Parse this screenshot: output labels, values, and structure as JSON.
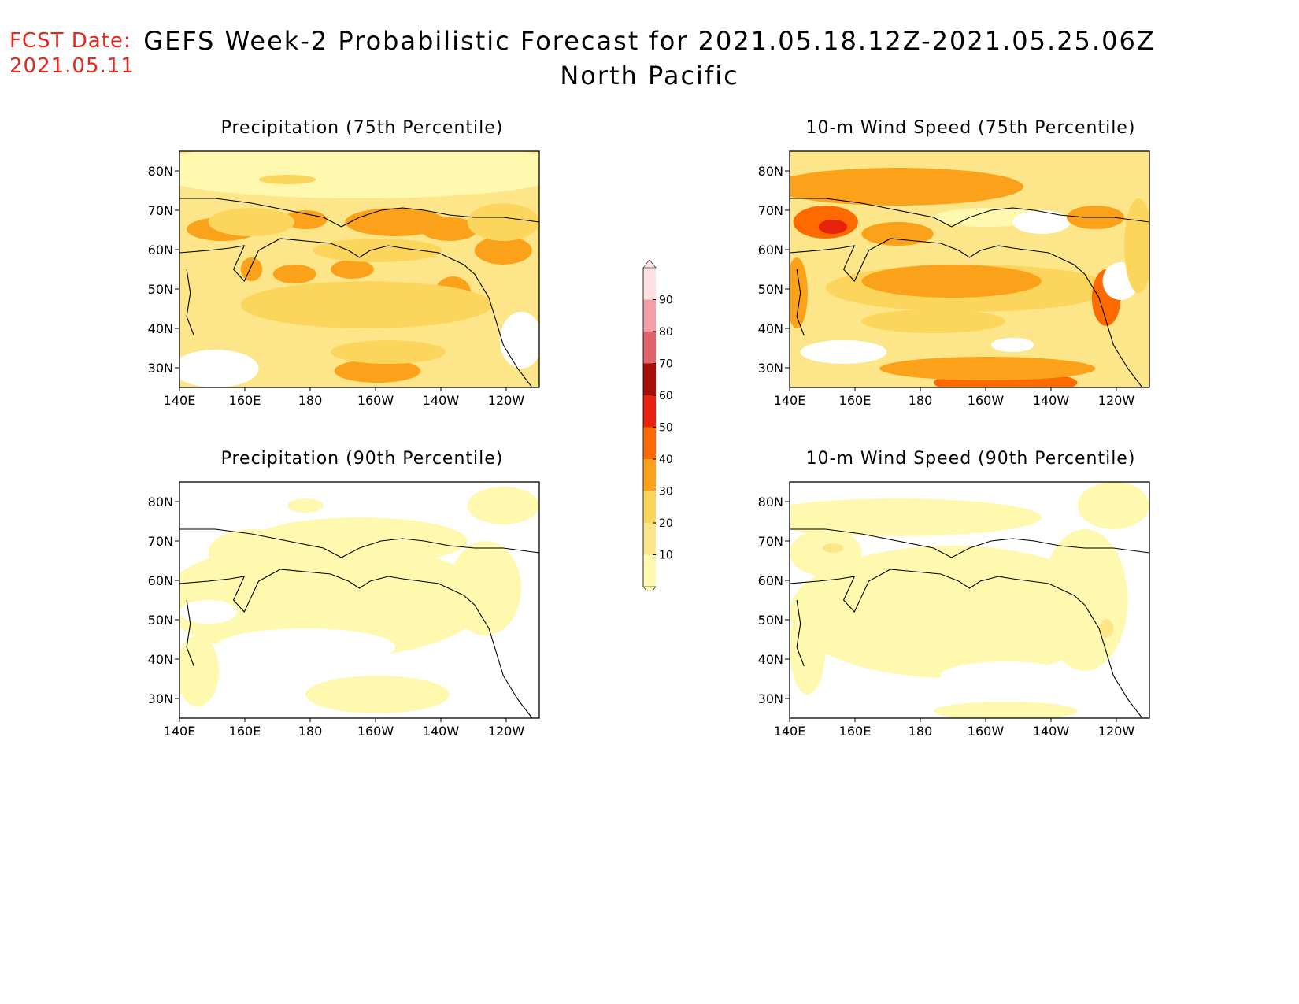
{
  "header": {
    "fcst_label": "FCST Date:",
    "fcst_date": "2021.05.11",
    "title_line1": "GEFS Week-2 Probabilistic Forecast for 2021.05.18.12Z-2021.05.25.06Z",
    "title_line2": "North Pacific"
  },
  "panels": [
    {
      "id": "precip75",
      "title": "Precipitation (75th Percentile)"
    },
    {
      "id": "wind75",
      "title": "10-m Wind Speed (75th Percentile)"
    },
    {
      "id": "precip90",
      "title": "Precipitation (90th Percentile)"
    },
    {
      "id": "wind90",
      "title": "10-m Wind Speed (90th Percentile)"
    }
  ],
  "axes": {
    "lat_ticks": [
      "80N",
      "70N",
      "60N",
      "50N",
      "40N",
      "30N"
    ],
    "lon_ticks": [
      "140E",
      "160E",
      "180",
      "160W",
      "140W",
      "120W"
    ]
  },
  "colorbar": {
    "levels": [
      "10",
      "20",
      "30",
      "40",
      "50",
      "60",
      "70",
      "80",
      "90"
    ],
    "colors": [
      "#fff9b0",
      "#fde68a",
      "#fcd65c",
      "#fba21a",
      "#ff6a00",
      "#e8220c",
      "#a50f08",
      "#e0626a",
      "#f2a0a6",
      "#fde0e2"
    ]
  }
}
